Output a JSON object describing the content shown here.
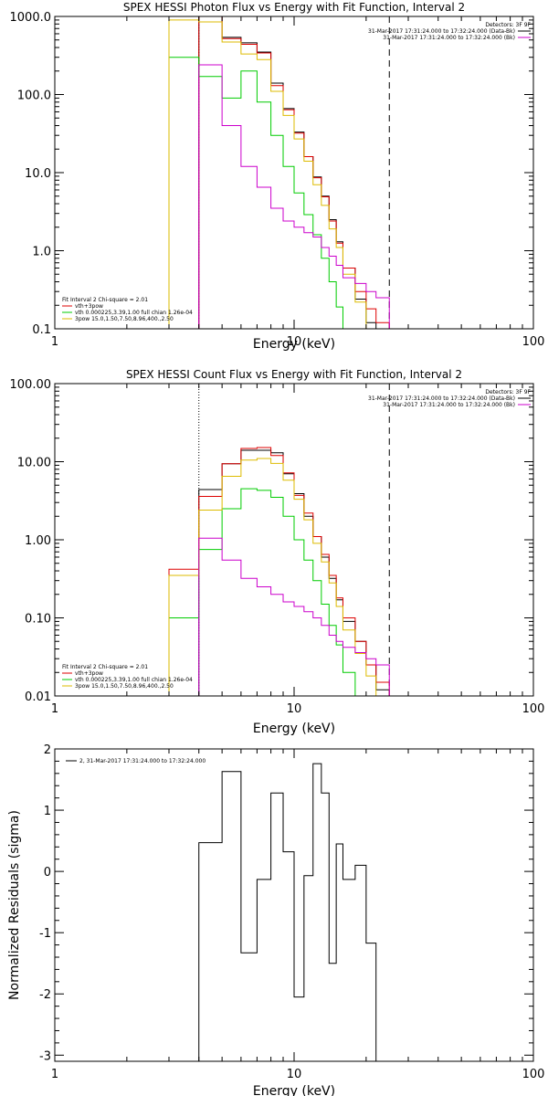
{
  "chart_data": [
    {
      "type": "line",
      "title": "SPEX HESSI Photon Flux vs Energy with Fit Function, Interval 2",
      "xlabel": "Energy (keV)",
      "ylabel": "",
      "xscale": "log",
      "yscale": "log",
      "xlim": [
        1,
        100
      ],
      "ylim": [
        0.1,
        1000
      ],
      "x_ticks": [
        "1",
        "10",
        "100"
      ],
      "y_ticks": [
        "0.1",
        "1.0",
        "10.0",
        "100.0",
        "1000.0"
      ],
      "grid": false,
      "legend_top": {
        "title": "Detectors: 3F 9F",
        "entries": [
          {
            "label": "31-Mar-2017 17:31:24.000 to 17:32:24.000 (Data-Bk)",
            "color": "#000000"
          },
          {
            "label": "31-Mar-2017 17:31:24.000 to 17:32:24.000 (Bk)",
            "color": "#cc00cc"
          }
        ]
      },
      "legend_fit": {
        "title": "Fit Interval 2   Chi-square = 2.01",
        "entries": [
          {
            "label": "vth+3pow",
            "color": "#dd0000"
          },
          {
            "label": "vth 0.000225,3.39,1.00   full chian 1.26e-04",
            "color": "#00cc00"
          },
          {
            "label": "3pow 15.0,1.50,7.50,8.96,400.,2.50",
            "color": "#ddbb00"
          }
        ]
      },
      "vlines": [
        {
          "x": 4.0,
          "color": "#000000",
          "style": "dotted"
        },
        {
          "x": 25.0,
          "color": "#000000",
          "style": "dashed"
        }
      ],
      "bin_edges": [
        3.0,
        4.0,
        5.0,
        6.0,
        7.0,
        8.0,
        9.0,
        10.0,
        11.0,
        12.0,
        13.0,
        14.0,
        15.0,
        16.0,
        18.0,
        20.0,
        22.0,
        25.0
      ],
      "series": [
        {
          "name": "data",
          "color": "#000000",
          "values": [
            null,
            1000,
            540,
            460,
            350,
            140,
            66,
            33,
            16,
            8.8,
            5.0,
            2.5,
            1.3,
            0.6,
            0.24,
            0.12,
            0.1
          ]
        },
        {
          "name": "vth+3pow",
          "color": "#dd0000",
          "values": [
            null,
            1000,
            520,
            440,
            340,
            130,
            64,
            32,
            16,
            8.6,
            4.9,
            2.4,
            1.25,
            0.6,
            0.3,
            0.18,
            0.12
          ]
        },
        {
          "name": "vth",
          "color": "#00cc00",
          "values": [
            300,
            170,
            90,
            200,
            80,
            30,
            12,
            5.5,
            2.9,
            1.6,
            0.8,
            0.4,
            0.19,
            null,
            null,
            null,
            null
          ]
        },
        {
          "name": "3pow",
          "color": "#ddbb00",
          "values": [
            900,
            850,
            470,
            330,
            280,
            110,
            54,
            27,
            14,
            7.0,
            3.8,
            1.9,
            1.1,
            0.5,
            0.22,
            0.1,
            null
          ]
        },
        {
          "name": "background",
          "color": "#cc00cc",
          "values": [
            null,
            240,
            40,
            12,
            6.5,
            3.5,
            2.4,
            2.0,
            1.7,
            1.5,
            1.1,
            0.85,
            0.65,
            0.45,
            0.38,
            0.3,
            0.25
          ]
        }
      ]
    },
    {
      "type": "line",
      "title": "SPEX HESSI Count Flux vs Energy with Fit Function, Interval 2",
      "xlabel": "Energy (keV)",
      "ylabel": "",
      "xscale": "log",
      "yscale": "log",
      "xlim": [
        1,
        100
      ],
      "ylim": [
        0.01,
        100
      ],
      "x_ticks": [
        "1",
        "10",
        "100"
      ],
      "y_ticks": [
        "0.01",
        "0.10",
        "1.00",
        "10.00",
        "100.00"
      ],
      "grid": false,
      "legend_top": {
        "title": "Detectors: 3F 9F",
        "entries": [
          {
            "label": "31-Mar-2017 17:31:24.000 to 17:32:24.000 (Data-Bk)",
            "color": "#000000"
          },
          {
            "label": "31-Mar-2017 17:31:24.000 to 17:32:24.000 (Bk)",
            "color": "#cc00cc"
          }
        ]
      },
      "legend_fit": {
        "title": "Fit Interval 2   Chi-square = 2.01",
        "entries": [
          {
            "label": "vth+3pow",
            "color": "#dd0000"
          },
          {
            "label": "vth 0.000225,3.39,1.00   full chian 1.26e-04",
            "color": "#00cc00"
          },
          {
            "label": "3pow 15.0,1.50,7.50,8.96,400.,2.50",
            "color": "#ddbb00"
          }
        ]
      },
      "vlines": [
        {
          "x": 4.0,
          "color": "#000000",
          "style": "dotted"
        },
        {
          "x": 25.0,
          "color": "#000000",
          "style": "dashed"
        }
      ],
      "bin_edges": [
        3.0,
        4.0,
        5.0,
        6.0,
        7.0,
        8.0,
        9.0,
        10.0,
        11.0,
        12.0,
        13.0,
        14.0,
        15.0,
        16.0,
        18.0,
        20.0,
        22.0,
        25.0
      ],
      "series": [
        {
          "name": "data",
          "color": "#000000",
          "values": [
            null,
            4.4,
            9.4,
            14.0,
            14.0,
            13.0,
            7.0,
            3.9,
            2.0,
            1.1,
            0.6,
            0.32,
            0.17,
            0.09,
            0.05,
            0.025,
            0.012
          ]
        },
        {
          "name": "vth+3pow",
          "color": "#dd0000",
          "values": [
            0.42,
            3.6,
            9.4,
            14.8,
            15.2,
            12.0,
            7.2,
            3.7,
            2.2,
            1.1,
            0.65,
            0.35,
            0.18,
            0.1,
            0.05,
            0.025,
            0.015
          ]
        },
        {
          "name": "vth",
          "color": "#00cc00",
          "values": [
            0.1,
            0.75,
            2.5,
            4.5,
            4.3,
            3.5,
            2.0,
            1.0,
            0.55,
            0.3,
            0.15,
            0.08,
            0.045,
            0.02,
            null,
            null,
            null
          ]
        },
        {
          "name": "3pow",
          "color": "#ddbb00",
          "values": [
            0.35,
            2.4,
            6.5,
            10.5,
            11.0,
            9.5,
            5.8,
            3.3,
            1.8,
            0.9,
            0.52,
            0.28,
            0.14,
            0.07,
            0.035,
            0.018,
            null
          ]
        },
        {
          "name": "background",
          "color": "#cc00cc",
          "values": [
            null,
            1.05,
            0.55,
            0.32,
            0.25,
            0.2,
            0.16,
            0.14,
            0.12,
            0.1,
            0.08,
            0.06,
            0.05,
            0.042,
            0.036,
            0.03,
            0.025
          ]
        }
      ]
    },
    {
      "type": "line",
      "title": "",
      "xlabel": "Energy (keV)",
      "ylabel": "Normalized Residuals (sigma)",
      "xscale": "log",
      "yscale": "linear",
      "xlim": [
        1,
        100
      ],
      "ylim": [
        -3.1,
        2.0
      ],
      "x_ticks": [
        "1",
        "10",
        "100"
      ],
      "y_ticks": [
        "-3",
        "-2",
        "-1",
        "0",
        "1",
        "2"
      ],
      "grid": false,
      "legend": {
        "entries": [
          {
            "label": "2, 31-Mar-2017 17:31:24.000 to 17:32:24.000",
            "color": "#000000"
          }
        ]
      },
      "bin_edges": [
        4.0,
        5.0,
        6.0,
        7.0,
        8.0,
        9.0,
        10.0,
        11.0,
        12.0,
        13.0,
        14.0,
        15.0,
        16.0,
        18.0,
        20.0,
        22.0,
        25.0
      ],
      "series": [
        {
          "name": "2, 31-Mar-2017 17:31:24.000 to 17:32:24.000",
          "color": "#000000",
          "values": [
            0.47,
            1.63,
            -1.33,
            -0.13,
            1.28,
            0.32,
            -2.05,
            -0.07,
            1.76,
            1.28,
            -1.5,
            0.45,
            -0.13,
            0.1,
            -1.17,
            null
          ]
        }
      ]
    }
  ]
}
